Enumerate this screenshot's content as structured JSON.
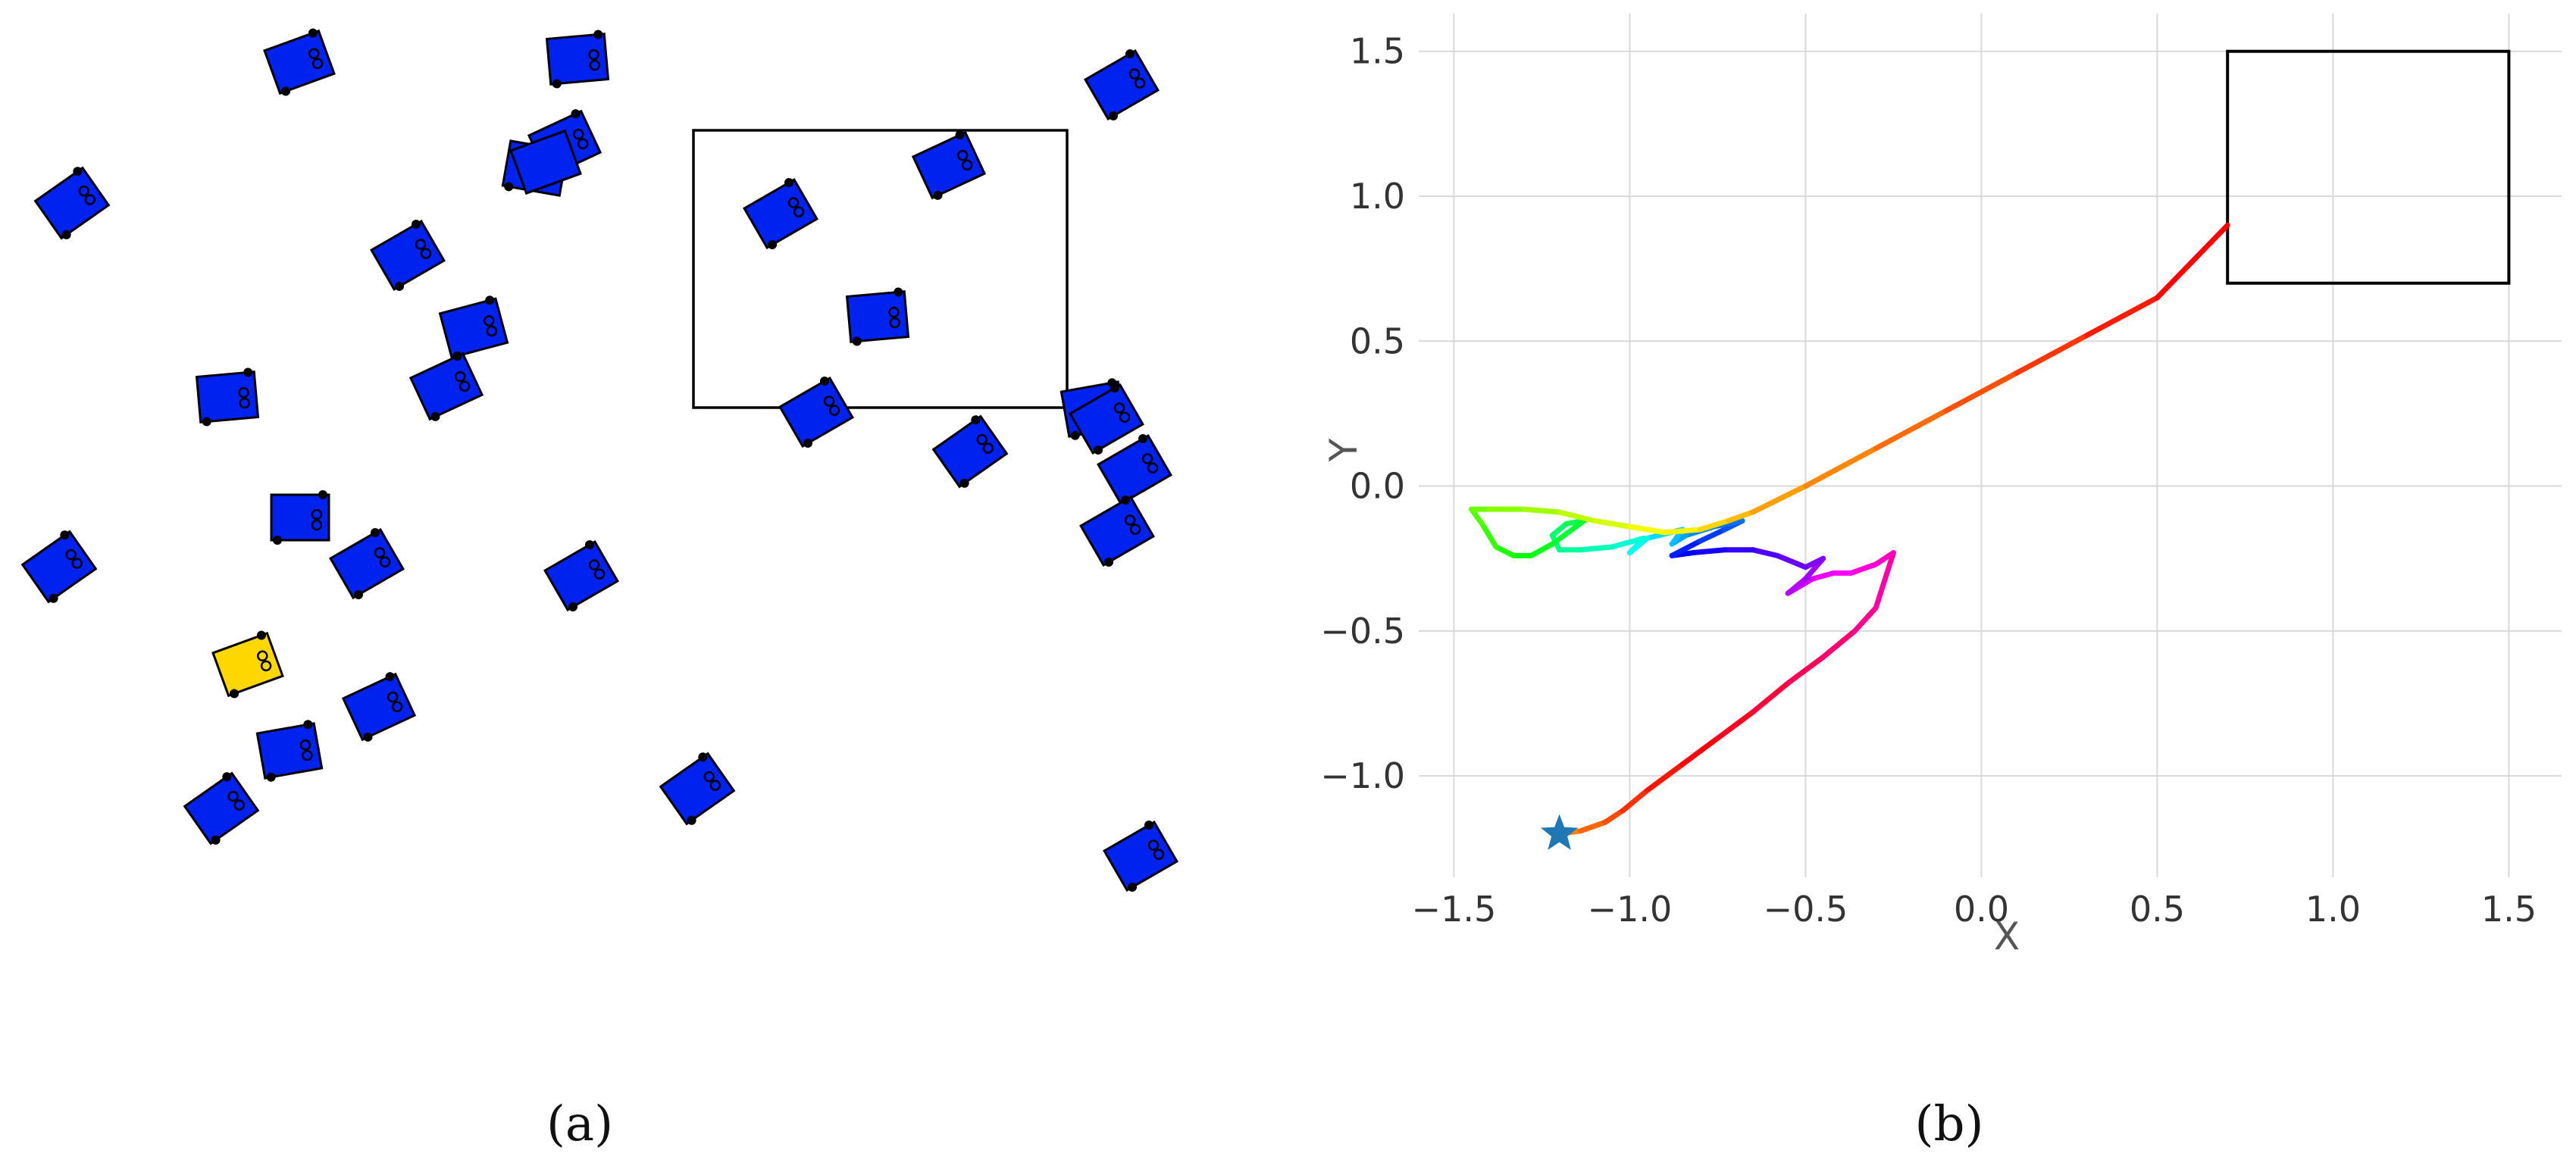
{
  "panels": [
    {
      "label": "(a)"
    },
    {
      "label": "(b)"
    }
  ],
  "colors": {
    "robot_blue": "#0022ee",
    "robot_highlight": "#ffd700",
    "target_outline": "#000000",
    "start_marker": "#1f77b4",
    "grid": "#d9d9d9",
    "axis_text": "#333333"
  },
  "icons": {
    "robot": "square-robot-icon",
    "start": "star-icon"
  },
  "scene_a": {
    "robot_count": 31,
    "highlighted_robot_count": 1,
    "has_target_region": true
  },
  "chart_data": {
    "type": "line",
    "title": "",
    "xlabel": "X",
    "ylabel": "Y",
    "xlim": [
      -1.6,
      1.65
    ],
    "ylim": [
      -1.35,
      1.63
    ],
    "xticks": [
      -1.5,
      -1.0,
      -0.5,
      0.0,
      0.5,
      1.0,
      1.5
    ],
    "xtick_labels": [
      "−1.5",
      "−1.0",
      "−0.5",
      "0.0",
      "0.5",
      "1.0",
      "1.5"
    ],
    "yticks": [
      -1.0,
      -0.5,
      0.0,
      0.5,
      1.0,
      1.5
    ],
    "ytick_labels": [
      "−1.0",
      "−0.5",
      "0.0",
      "0.5",
      "1.0",
      "1.5"
    ],
    "grid": true,
    "legend": "none",
    "color_encoding": "progress along trajectory (orange to red, rainbow)",
    "start_point": {
      "x": -1.2,
      "y": -1.2,
      "marker": "star"
    },
    "target_box": {
      "x": [
        0.7,
        1.5
      ],
      "y": [
        0.7,
        1.5
      ]
    },
    "trajectory": {
      "x": [
        -1.2,
        -1.14,
        -1.07,
        -1.02,
        -0.95,
        -0.85,
        -0.75,
        -0.65,
        -0.55,
        -0.45,
        -0.36,
        -0.3,
        -0.25,
        -0.3,
        -0.37,
        -0.42,
        -0.48,
        -0.55,
        -0.5,
        -0.45,
        -0.5,
        -0.58,
        -0.65,
        -0.73,
        -0.82,
        -0.88,
        -0.8,
        -0.73,
        -0.68,
        -0.76,
        -0.84,
        -0.88,
        -0.85,
        -0.95,
        -1.0,
        -0.96,
        -1.05,
        -1.14,
        -1.2,
        -1.22,
        -1.18,
        -1.13,
        -1.22,
        -1.28,
        -1.33,
        -1.38,
        -1.42,
        -1.45,
        -1.4,
        -1.3,
        -1.2,
        -1.1,
        -1.0,
        -0.9,
        -0.8,
        -0.72,
        -0.65,
        -0.5,
        -0.3,
        -0.1,
        0.1,
        0.3,
        0.5,
        0.7
      ],
      "y": [
        -1.2,
        -1.19,
        -1.16,
        -1.12,
        -1.05,
        -0.96,
        -0.87,
        -0.78,
        -0.68,
        -0.59,
        -0.5,
        -0.42,
        -0.23,
        -0.27,
        -0.3,
        -0.3,
        -0.32,
        -0.37,
        -0.32,
        -0.25,
        -0.28,
        -0.24,
        -0.22,
        -0.22,
        -0.23,
        -0.24,
        -0.19,
        -0.15,
        -0.12,
        -0.14,
        -0.17,
        -0.2,
        -0.15,
        -0.18,
        -0.23,
        -0.18,
        -0.21,
        -0.22,
        -0.22,
        -0.17,
        -0.13,
        -0.12,
        -0.2,
        -0.24,
        -0.24,
        -0.21,
        -0.13,
        -0.08,
        -0.08,
        -0.08,
        -0.09,
        -0.12,
        -0.14,
        -0.16,
        -0.15,
        -0.12,
        -0.09,
        0.0,
        0.13,
        0.26,
        0.39,
        0.52,
        0.65,
        0.9
      ]
    }
  }
}
